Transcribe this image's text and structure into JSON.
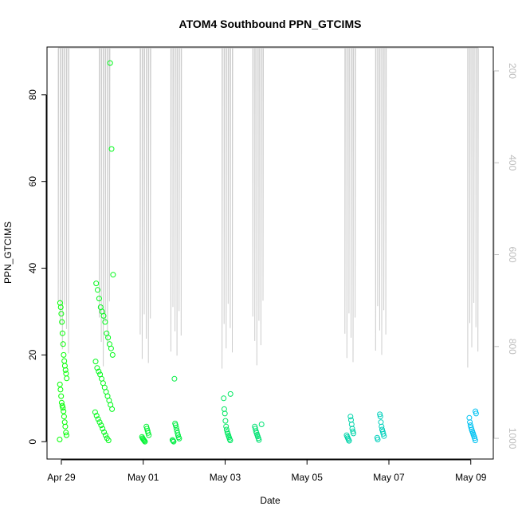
{
  "chart_data": {
    "type": "scatter",
    "title": "ATOM4 Southbound PPN_GTCIMS",
    "xlabel": "Date",
    "ylabel": "PPN_GTCIMS",
    "x_tick_labels": [
      "Apr 29",
      "May 01",
      "May 03",
      "May 05",
      "May 07",
      "May 09"
    ],
    "x_ticks_day": [
      0,
      2,
      4,
      6,
      8,
      10
    ],
    "xlim_days_from_apr29": [
      -0.35,
      10.55
    ],
    "ylim": [
      -4,
      91
    ],
    "y_ticks": [
      0,
      20,
      40,
      60,
      80
    ],
    "secondary_axis": {
      "position": "right",
      "reversed": true,
      "ticks": [
        200,
        400,
        600,
        800,
        1000
      ],
      "range": [
        1045,
        148
      ],
      "color": "#bdbdbd"
    },
    "point_color_scale": [
      "#00ff00",
      "#00bfff"
    ],
    "series": [
      {
        "date": "2008-04-29",
        "values": [
          0.5,
          1.5,
          2.1,
          3.5,
          4.5,
          5.8,
          7.0,
          7.8,
          8.3,
          9.0,
          10.5,
          12.0,
          13.2,
          14.6,
          15.7,
          16.5,
          17.5,
          18.6,
          20.0,
          22.5,
          25.0,
          27.6,
          29.5,
          31.0,
          32.0
        ]
      },
      {
        "date": "2008-04-30",
        "values": [
          0.3,
          0.8,
          1.5,
          2.2,
          3.0,
          3.8,
          4.5,
          5.2,
          6.0,
          6.8,
          7.5,
          8.5,
          9.5,
          10.5,
          11.5,
          12.5,
          13.5,
          14.5,
          15.5,
          16.2,
          17.0,
          18.5,
          20.0,
          21.5,
          22.5,
          24.0,
          25.0,
          27.6,
          29.0,
          30.0,
          31.0,
          33.0,
          35.0,
          36.5,
          38.5,
          67.5,
          87.3
        ]
      },
      {
        "date": "2008-05-01",
        "values": [
          0.0,
          0.2,
          0.4,
          0.6,
          0.8,
          1.1,
          1.5,
          2.0,
          2.5,
          3.0,
          3.5
        ]
      },
      {
        "date": "2008-05-01",
        "values": [
          0.0,
          0.2,
          0.4,
          0.7,
          1.0,
          1.5,
          2.0,
          2.6,
          3.2,
          3.8,
          4.2,
          14.5
        ]
      },
      {
        "date": "2008-05-03",
        "values": [
          0.3,
          0.6,
          1.0,
          1.4,
          1.8,
          2.2,
          2.8,
          3.5,
          4.8,
          6.5,
          7.5,
          10.0,
          11.0
        ]
      },
      {
        "date": "2008-05-03",
        "values": [
          0.4,
          0.8,
          1.2,
          1.6,
          2.0,
          2.4,
          3.0,
          3.5,
          4.0
        ]
      },
      {
        "date": "2008-05-06",
        "values": [
          0.2,
          0.5,
          0.8,
          1.1,
          1.5,
          1.9,
          2.4,
          3.0,
          4.0,
          5.0,
          5.8
        ]
      },
      {
        "date": "2008-05-06",
        "values": [
          0.5,
          0.9,
          1.3,
          1.8,
          2.3,
          2.8,
          3.5,
          4.5,
          5.8,
          6.3
        ]
      },
      {
        "date": "2008-05-09",
        "values": [
          0.3,
          0.8,
          1.2,
          1.6,
          2.0,
          2.4,
          2.8,
          3.3,
          3.8,
          4.5,
          5.5,
          6.5,
          7.0
        ]
      }
    ],
    "altitude_trace_color": "#cccccc",
    "grid": false,
    "legend": "none"
  }
}
